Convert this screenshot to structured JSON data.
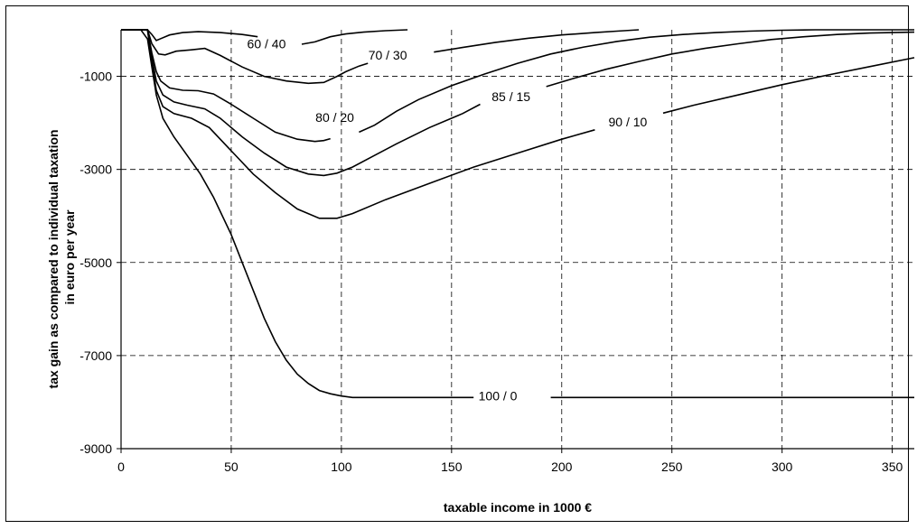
{
  "chart_data": {
    "type": "line",
    "xlabel": "taxable income in 1000 €",
    "ylabel_lines": [
      "tax gain as compared to individual taxation",
      "in euro per year"
    ],
    "xlim": [
      0,
      360
    ],
    "ylim": [
      -9000,
      0
    ],
    "x_ticks": [
      0,
      50,
      100,
      150,
      200,
      250,
      300,
      350
    ],
    "y_ticks": [
      -1000,
      -3000,
      -5000,
      -7000,
      -9000
    ],
    "x_grid": [
      50,
      100,
      150,
      200,
      250,
      300,
      350
    ],
    "y_grid": [
      -1000,
      -3000,
      -5000,
      -7000
    ],
    "grid": true,
    "series": [
      {
        "name": "60 / 40",
        "label_at": [
          66,
          -300
        ],
        "segments": [
          [
            [
              0,
              0
            ],
            [
              9,
              0
            ],
            [
              12,
              0
            ],
            [
              14,
              -100
            ],
            [
              16,
              -230
            ],
            [
              18,
              -190
            ],
            [
              22,
              -110
            ],
            [
              28,
              -60
            ],
            [
              35,
              -40
            ],
            [
              45,
              -60
            ],
            [
              55,
              -100
            ],
            [
              62,
              -150
            ]
          ],
          [
            [
              82,
              -310
            ],
            [
              88,
              -260
            ],
            [
              95,
              -150
            ],
            [
              102,
              -90
            ],
            [
              110,
              -50
            ],
            [
              120,
              -20
            ],
            [
              130,
              0
            ]
          ]
        ]
      },
      {
        "name": "70 / 30",
        "label_at": [
          121,
          -540
        ],
        "segments": [
          [
            [
              0,
              0
            ],
            [
              9,
              0
            ],
            [
              12,
              0
            ],
            [
              14,
              -300
            ],
            [
              17,
              -520
            ],
            [
              20,
              -540
            ],
            [
              25,
              -460
            ],
            [
              32,
              -430
            ],
            [
              38,
              -400
            ],
            [
              45,
              -550
            ],
            [
              55,
              -800
            ],
            [
              65,
              -1000
            ],
            [
              75,
              -1100
            ],
            [
              85,
              -1150
            ],
            [
              92,
              -1130
            ],
            [
              98,
              -1000
            ],
            [
              102,
              -900
            ],
            [
              108,
              -780
            ],
            [
              112,
              -720
            ]
          ],
          [
            [
              142,
              -480
            ],
            [
              155,
              -380
            ],
            [
              170,
              -270
            ],
            [
              185,
              -180
            ],
            [
              200,
              -110
            ],
            [
              215,
              -60
            ],
            [
              225,
              -30
            ],
            [
              235,
              0
            ]
          ]
        ]
      },
      {
        "name": "80 / 20",
        "label_at": [
          97,
          -1880
        ],
        "segments": [
          [
            [
              0,
              0
            ],
            [
              9,
              0
            ],
            [
              12,
              0
            ],
            [
              14,
              -500
            ],
            [
              16,
              -900
            ],
            [
              18,
              -1100
            ],
            [
              22,
              -1250
            ],
            [
              28,
              -1300
            ],
            [
              35,
              -1310
            ],
            [
              42,
              -1380
            ],
            [
              50,
              -1600
            ],
            [
              60,
              -1900
            ],
            [
              70,
              -2200
            ],
            [
              80,
              -2350
            ],
            [
              88,
              -2400
            ],
            [
              92,
              -2380
            ],
            [
              95,
              -2340
            ]
          ],
          [
            [
              108,
              -2200
            ],
            [
              115,
              -2050
            ],
            [
              125,
              -1750
            ],
            [
              135,
              -1500
            ],
            [
              150,
              -1200
            ],
            [
              165,
              -950
            ],
            [
              180,
              -720
            ],
            [
              195,
              -520
            ],
            [
              210,
              -370
            ],
            [
              225,
              -250
            ],
            [
              240,
              -160
            ],
            [
              255,
              -100
            ],
            [
              270,
              -60
            ],
            [
              285,
              -30
            ],
            [
              300,
              -10
            ],
            [
              315,
              0
            ],
            [
              360,
              0
            ]
          ]
        ]
      },
      {
        "name": "85 / 15",
        "label_at": [
          177,
          -1440
        ],
        "segments": [
          [
            [
              0,
              0
            ],
            [
              9,
              0
            ],
            [
              12,
              0
            ],
            [
              14,
              -600
            ],
            [
              16,
              -1100
            ],
            [
              19,
              -1400
            ],
            [
              24,
              -1550
            ],
            [
              30,
              -1620
            ],
            [
              38,
              -1700
            ],
            [
              45,
              -1900
            ],
            [
              55,
              -2300
            ],
            [
              65,
              -2650
            ],
            [
              75,
              -2950
            ],
            [
              85,
              -3100
            ],
            [
              92,
              -3130
            ],
            [
              98,
              -3080
            ],
            [
              105,
              -2950
            ],
            [
              115,
              -2700
            ],
            [
              125,
              -2450
            ],
            [
              140,
              -2100
            ],
            [
              155,
              -1800
            ],
            [
              163,
              -1600
            ]
          ],
          [
            [
              193,
              -1220
            ],
            [
              205,
              -1050
            ],
            [
              220,
              -850
            ],
            [
              235,
              -680
            ],
            [
              250,
              -520
            ],
            [
              265,
              -400
            ],
            [
              280,
              -300
            ],
            [
              295,
              -210
            ],
            [
              310,
              -150
            ],
            [
              325,
              -100
            ],
            [
              340,
              -70
            ],
            [
              360,
              -50
            ]
          ]
        ]
      },
      {
        "name": "90 / 10",
        "label_at": [
          230,
          -1980
        ],
        "segments": [
          [
            [
              0,
              0
            ],
            [
              9,
              0
            ],
            [
              12,
              0
            ],
            [
              14,
              -700
            ],
            [
              16,
              -1300
            ],
            [
              19,
              -1650
            ],
            [
              24,
              -1800
            ],
            [
              32,
              -1900
            ],
            [
              40,
              -2100
            ],
            [
              50,
              -2600
            ],
            [
              60,
              -3100
            ],
            [
              70,
              -3500
            ],
            [
              80,
              -3850
            ],
            [
              90,
              -4050
            ],
            [
              98,
              -4050
            ],
            [
              105,
              -3950
            ],
            [
              120,
              -3650
            ],
            [
              140,
              -3300
            ],
            [
              160,
              -2950
            ],
            [
              180,
              -2650
            ],
            [
              200,
              -2350
            ],
            [
              215,
              -2150
            ]
          ],
          [
            [
              246,
              -1790
            ],
            [
              260,
              -1620
            ],
            [
              280,
              -1400
            ],
            [
              300,
              -1180
            ],
            [
              320,
              -980
            ],
            [
              340,
              -790
            ],
            [
              360,
              -600
            ]
          ]
        ]
      },
      {
        "name": "100 / 0",
        "label_at": [
          171,
          -7870
        ],
        "segments": [
          [
            [
              0,
              0
            ],
            [
              9,
              0
            ],
            [
              12,
              -200
            ],
            [
              14,
              -800
            ],
            [
              16,
              -1400
            ],
            [
              19,
              -1900
            ],
            [
              24,
              -2300
            ],
            [
              30,
              -2700
            ],
            [
              36,
              -3100
            ],
            [
              42,
              -3600
            ],
            [
              50,
              -4400
            ],
            [
              55,
              -5000
            ],
            [
              60,
              -5600
            ],
            [
              65,
              -6200
            ],
            [
              70,
              -6700
            ],
            [
              75,
              -7100
            ],
            [
              80,
              -7400
            ],
            [
              85,
              -7600
            ],
            [
              90,
              -7750
            ],
            [
              95,
              -7820
            ],
            [
              100,
              -7870
            ],
            [
              105,
              -7900
            ],
            [
              160,
              -7900
            ]
          ],
          [
            [
              195,
              -7900
            ],
            [
              360,
              -7900
            ]
          ]
        ]
      }
    ]
  }
}
